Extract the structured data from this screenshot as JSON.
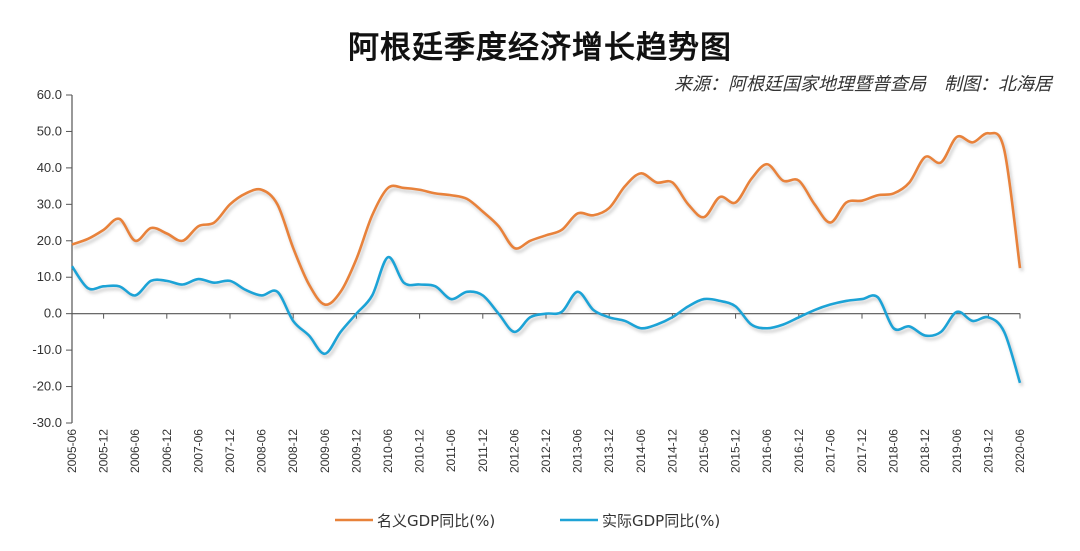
{
  "chart_data": {
    "type": "line",
    "title": "阿根廷季度经济增长趋势图",
    "subtitle": "来源：阿根廷国家地理暨普查局　制图：北海居",
    "xlabel": "",
    "ylabel": "",
    "ylim": [
      -30,
      60
    ],
    "yticks": [
      "60.0",
      "50.0",
      "40.0",
      "30.0",
      "20.0",
      "10.0",
      "0.0",
      "-10.0",
      "-20.0",
      "-30.0"
    ],
    "ytick_values": [
      60,
      50,
      40,
      30,
      20,
      10,
      0,
      -10,
      -20,
      -30
    ],
    "negative_tick_color": "#d0343a",
    "grid": false,
    "legend_position": "bottom",
    "x_labels": [
      "2005-06",
      "2005-12",
      "2006-06",
      "2006-12",
      "2007-06",
      "2007-12",
      "2008-06",
      "2008-12",
      "2009-06",
      "2009-12",
      "2010-06",
      "2010-12",
      "2011-06",
      "2011-12",
      "2012-06",
      "2012-12",
      "2013-06",
      "2013-12",
      "2014-06",
      "2014-12",
      "2015-06",
      "2015-12",
      "2016-06",
      "2016-12",
      "2017-06",
      "2017-12",
      "2018-06",
      "2018-12",
      "2019-06",
      "2019-12",
      "2020-06"
    ],
    "quarters": 61,
    "series": [
      {
        "name": "名义GDP同比(%)",
        "color": "#e8823a",
        "values": [
          19,
          20.5,
          23,
          26,
          20,
          23.5,
          22,
          20,
          24,
          25,
          30,
          33,
          34,
          30,
          18,
          8,
          2.5,
          6,
          15,
          27,
          34.5,
          34.5,
          34,
          33,
          32.5,
          31.5,
          28,
          24,
          18,
          20,
          21.5,
          23,
          27.5,
          27,
          29,
          35,
          38.5,
          36,
          36,
          30,
          26.5,
          32,
          30.5,
          37,
          41,
          36.5,
          36.5,
          30,
          25,
          30.5,
          31,
          32.5,
          33,
          36,
          43,
          41.5,
          48.5,
          47,
          49.5,
          45,
          12.5
        ]
      },
      {
        "name": "实际GDP同比(%)",
        "color": "#1fa3d6",
        "values": [
          13,
          7,
          7.5,
          7.5,
          5,
          9,
          9,
          8,
          9.5,
          8.5,
          9,
          6.5,
          5,
          6,
          -2,
          -6,
          -11,
          -5,
          0,
          5,
          15.5,
          8.5,
          8,
          7.5,
          4,
          6,
          5,
          0,
          -5,
          -1,
          0,
          0.5,
          6,
          1,
          -1,
          -2,
          -4,
          -3,
          -1,
          2,
          4,
          3.5,
          2,
          -3,
          -4,
          -3,
          -1,
          1,
          2.5,
          3.5,
          4,
          4.5,
          -4,
          -3.5,
          -6,
          -5,
          0.5,
          -2,
          -1,
          -5,
          -19
        ]
      }
    ]
  }
}
